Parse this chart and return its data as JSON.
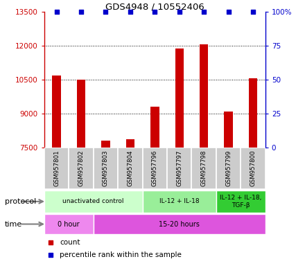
{
  "title": "GDS4948 / 10552406",
  "samples": [
    "GSM957801",
    "GSM957802",
    "GSM957803",
    "GSM957804",
    "GSM957796",
    "GSM957797",
    "GSM957798",
    "GSM957799",
    "GSM957800"
  ],
  "bar_values": [
    10700,
    10520,
    7820,
    7870,
    9300,
    11900,
    12060,
    9100,
    10560
  ],
  "percentile_values": [
    100,
    100,
    100,
    100,
    100,
    100,
    100,
    100,
    100
  ],
  "ylim": [
    7500,
    13500
  ],
  "yticks_left": [
    7500,
    9000,
    10500,
    12000,
    13500
  ],
  "yticks_right_vals": [
    0,
    25,
    50,
    75,
    100
  ],
  "yticks_right_labels": [
    "0",
    "25",
    "50",
    "75",
    "100%"
  ],
  "bar_color": "#cc0000",
  "percentile_color": "#0000cc",
  "protocol_groups": [
    {
      "label": "unactivated control",
      "start": 0,
      "end": 4,
      "color": "#ccffcc"
    },
    {
      "label": "IL-12 + IL-18",
      "start": 4,
      "end": 7,
      "color": "#99ee99"
    },
    {
      "label": "IL-12 + IL-18,\nTGF-β",
      "start": 7,
      "end": 9,
      "color": "#33cc33"
    }
  ],
  "time_groups": [
    {
      "label": "0 hour",
      "start": 0,
      "end": 2,
      "color": "#ee88ee"
    },
    {
      "label": "15-20 hours",
      "start": 2,
      "end": 9,
      "color": "#dd55dd"
    }
  ],
  "legend_count_label": "count",
  "legend_percentile_label": "percentile rank within the sample",
  "sample_label_bg": "#cccccc",
  "grid_dotted_color": "#555555"
}
